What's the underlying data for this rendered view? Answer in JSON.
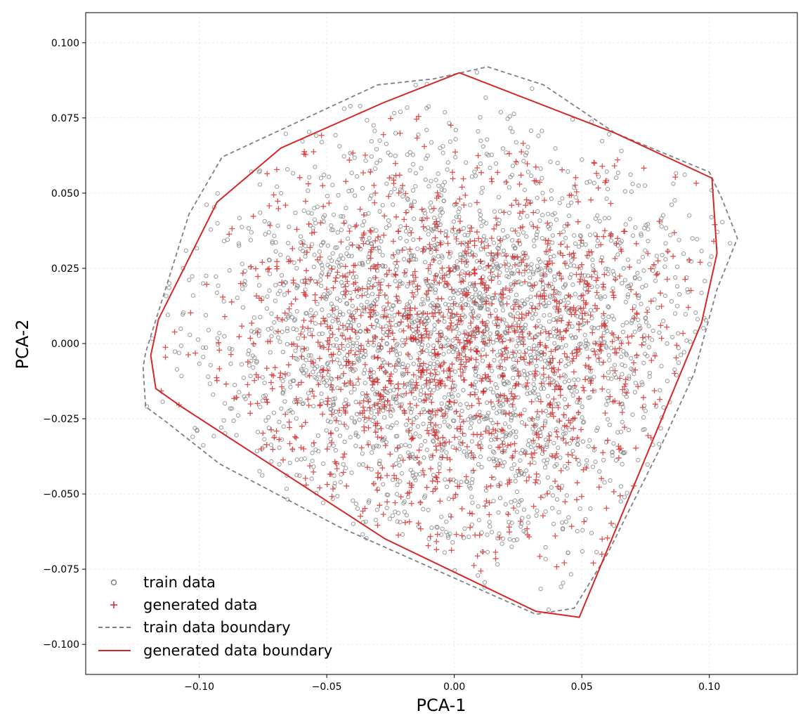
{
  "chart_data": {
    "type": "scatter",
    "title": "",
    "xlabel": "PCA-1",
    "ylabel": "PCA-2",
    "xlim": [
      -0.1445,
      0.1345
    ],
    "ylim": [
      -0.11,
      0.11
    ],
    "xticks": [
      -0.1,
      -0.05,
      0.0,
      0.05,
      0.1
    ],
    "xtick_labels": [
      "−0.10",
      "−0.05",
      "0.00",
      "0.05",
      "0.10"
    ],
    "yticks": [
      0.1,
      0.075,
      0.05,
      0.025,
      0.0,
      -0.025,
      -0.05,
      -0.075,
      -0.1
    ],
    "ytick_labels": [
      "0.100",
      "0.075",
      "0.050",
      "0.025",
      "0.000",
      "−0.025",
      "−0.050",
      "−0.075",
      "−0.100"
    ],
    "grid": true,
    "legend_position": "bottom-left",
    "legend": [
      {
        "label": "train data",
        "marker": "circle"
      },
      {
        "label": "generated data",
        "marker": "plus"
      },
      {
        "label": "train data boundary",
        "marker": "dashed-line"
      },
      {
        "label": "generated data boundary",
        "marker": "solid-line"
      }
    ],
    "colors": {
      "train": "#808080",
      "generated": "#d62728",
      "grid": "#e6e6e6",
      "axes": "#000000"
    },
    "train_boundary": [
      [
        0.013,
        0.092
      ],
      [
        0.035,
        0.086
      ],
      [
        0.063,
        0.07
      ],
      [
        0.1,
        0.057
      ],
      [
        0.105,
        0.048
      ],
      [
        0.111,
        0.035
      ],
      [
        0.103,
        0.018
      ],
      [
        0.094,
        -0.01
      ],
      [
        0.08,
        -0.036
      ],
      [
        0.06,
        -0.07
      ],
      [
        0.047,
        -0.088
      ],
      [
        0.032,
        -0.09
      ],
      [
        -0.045,
        -0.061
      ],
      [
        -0.092,
        -0.04
      ],
      [
        -0.113,
        -0.026
      ],
      [
        -0.121,
        -0.021
      ],
      [
        -0.122,
        -0.008
      ],
      [
        -0.121,
        -0.003
      ],
      [
        -0.104,
        0.043
      ],
      [
        -0.091,
        0.062
      ],
      [
        -0.03,
        0.086
      ],
      [
        -0.008,
        0.088
      ],
      [
        0.013,
        0.092
      ]
    ],
    "generated_boundary": [
      [
        0.002,
        0.09
      ],
      [
        0.063,
        0.07
      ],
      [
        0.101,
        0.055
      ],
      [
        0.103,
        0.03
      ],
      [
        0.097,
        0.007
      ],
      [
        0.049,
        -0.091
      ],
      [
        0.032,
        -0.089
      ],
      [
        -0.027,
        -0.065
      ],
      [
        -0.107,
        -0.021
      ],
      [
        -0.117,
        -0.015
      ],
      [
        -0.119,
        -0.004
      ],
      [
        -0.116,
        0.008
      ],
      [
        -0.093,
        0.047
      ],
      [
        -0.068,
        0.065
      ],
      [
        -0.028,
        0.08
      ],
      [
        0.002,
        0.09
      ]
    ],
    "train_data": {
      "n_points": 2600,
      "seed": 1337,
      "center": [
        0.0,
        0.0
      ],
      "std": [
        0.05,
        0.034
      ]
    },
    "generated_data": {
      "n_points": 1500,
      "seed": 4242,
      "center": [
        0.0,
        -0.003
      ],
      "std": [
        0.048,
        0.032
      ]
    }
  }
}
